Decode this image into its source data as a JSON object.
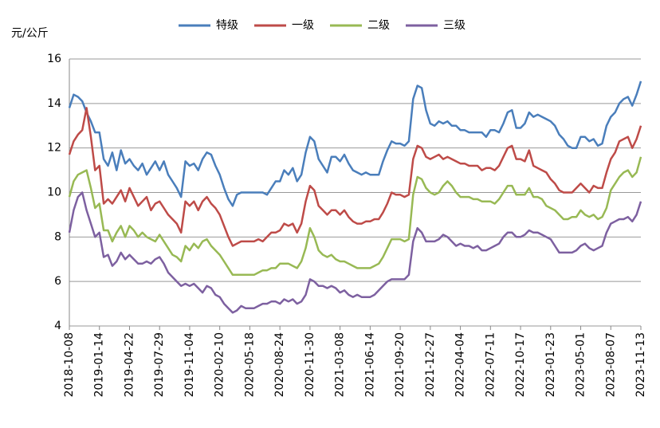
{
  "chart_data": {
    "type": "line",
    "y_label": "元/公斤",
    "categories": [
      "2018-10-08",
      null,
      null,
      null,
      null,
      null,
      null,
      "2019-01-14",
      null,
      null,
      null,
      null,
      null,
      null,
      "2019-04-22",
      null,
      null,
      null,
      null,
      null,
      null,
      "2019-07-29",
      null,
      null,
      null,
      null,
      null,
      null,
      "2019-11-04",
      null,
      null,
      null,
      null,
      null,
      null,
      "2020-02-10",
      null,
      null,
      null,
      null,
      null,
      null,
      "2020-05-18",
      null,
      null,
      null,
      null,
      null,
      null,
      "2020-08-24",
      null,
      null,
      null,
      null,
      null,
      null,
      "2020-11-30",
      null,
      null,
      null,
      null,
      null,
      null,
      "2021-03-08",
      null,
      null,
      null,
      null,
      null,
      null,
      "2021-06-14",
      null,
      null,
      null,
      null,
      null,
      null,
      "2021-09-20",
      null,
      null,
      null,
      null,
      null,
      null,
      "2021-12-27",
      null,
      null,
      null,
      null,
      null,
      null,
      "2022-04-04",
      null,
      null,
      null,
      null,
      null,
      null,
      "2022-07-11",
      null,
      null,
      null,
      null,
      null,
      null,
      "2022-10-17",
      null,
      null,
      null,
      null,
      null,
      null,
      "2023-01-23",
      null,
      null,
      null,
      null,
      null,
      null,
      "2023-05-01",
      null,
      null,
      null,
      null,
      null,
      null,
      "2023-08-07",
      null,
      null,
      null,
      null,
      null,
      null,
      "2023-11-13"
    ],
    "series": [
      {
        "name": "特级",
        "color": "#4a7ebb",
        "values": [
          13.8,
          14.4,
          14.3,
          14.1,
          13.6,
          13.2,
          12.7,
          12.7,
          11.5,
          11.2,
          11.8,
          11.0,
          11.9,
          11.3,
          11.5,
          11.2,
          11.0,
          11.3,
          10.8,
          11.1,
          11.4,
          11.0,
          11.4,
          10.8,
          10.5,
          10.2,
          9.8,
          11.4,
          11.2,
          11.3,
          11.0,
          11.5,
          11.8,
          11.7,
          11.2,
          10.8,
          10.2,
          9.7,
          9.4,
          9.9,
          10.0,
          10.0,
          10.0,
          10.0,
          10.0,
          10.0,
          9.9,
          10.2,
          10.5,
          10.5,
          11.0,
          10.8,
          11.1,
          10.5,
          10.8,
          11.8,
          12.5,
          12.3,
          11.5,
          11.2,
          10.9,
          11.6,
          11.6,
          11.4,
          11.7,
          11.3,
          11.0,
          10.9,
          10.8,
          10.9,
          10.8,
          10.8,
          10.8,
          11.4,
          11.9,
          12.3,
          12.2,
          12.2,
          12.1,
          12.3,
          14.2,
          14.8,
          14.7,
          13.7,
          13.1,
          13.0,
          13.2,
          13.1,
          13.2,
          13.0,
          13.0,
          12.8,
          12.8,
          12.7,
          12.7,
          12.7,
          12.7,
          12.5,
          12.8,
          12.8,
          12.7,
          13.1,
          13.6,
          13.7,
          12.9,
          12.9,
          13.1,
          13.6,
          13.4,
          13.5,
          13.4,
          13.3,
          13.2,
          13.0,
          12.6,
          12.4,
          12.1,
          12.0,
          12.0,
          12.5,
          12.5,
          12.3,
          12.4,
          12.1,
          12.2,
          13.0,
          13.4,
          13.6,
          14.0,
          14.2,
          14.3,
          13.9,
          14.4,
          15.0
        ]
      },
      {
        "name": "一级",
        "color": "#be4b48",
        "values": [
          11.7,
          12.3,
          12.6,
          12.8,
          13.8,
          12.5,
          11.0,
          11.2,
          9.5,
          9.7,
          9.5,
          9.8,
          10.1,
          9.6,
          10.2,
          9.8,
          9.4,
          9.6,
          9.8,
          9.2,
          9.5,
          9.6,
          9.3,
          9.0,
          8.8,
          8.6,
          8.2,
          9.6,
          9.4,
          9.6,
          9.2,
          9.6,
          9.8,
          9.5,
          9.3,
          9.0,
          8.5,
          8.0,
          7.6,
          7.7,
          7.8,
          7.8,
          7.8,
          7.8,
          7.9,
          7.8,
          8.0,
          8.2,
          8.2,
          8.3,
          8.6,
          8.5,
          8.6,
          8.2,
          8.6,
          9.6,
          10.3,
          10.1,
          9.4,
          9.2,
          9.0,
          9.2,
          9.2,
          9.0,
          9.2,
          8.9,
          8.7,
          8.6,
          8.6,
          8.7,
          8.7,
          8.8,
          8.8,
          9.1,
          9.5,
          10.0,
          9.9,
          9.9,
          9.8,
          9.9,
          11.5,
          12.1,
          12.0,
          11.6,
          11.5,
          11.6,
          11.7,
          11.5,
          11.6,
          11.5,
          11.4,
          11.3,
          11.3,
          11.2,
          11.2,
          11.2,
          11.0,
          11.1,
          11.1,
          11.0,
          11.2,
          11.6,
          12.0,
          12.1,
          11.5,
          11.5,
          11.4,
          11.9,
          11.2,
          11.1,
          11.0,
          10.9,
          10.6,
          10.4,
          10.1,
          10.0,
          10.0,
          10.0,
          10.2,
          10.4,
          10.2,
          10.0,
          10.3,
          10.2,
          10.2,
          10.9,
          11.5,
          11.8,
          12.3,
          12.4,
          12.5,
          12.0,
          12.4,
          13.0
        ]
      },
      {
        "name": "二级",
        "color": "#98b954",
        "values": [
          9.8,
          10.5,
          10.8,
          10.9,
          11.0,
          10.2,
          9.3,
          9.5,
          8.3,
          8.3,
          7.8,
          8.2,
          8.5,
          8.0,
          8.5,
          8.3,
          8.0,
          8.2,
          8.0,
          7.9,
          7.8,
          8.1,
          7.8,
          7.5,
          7.2,
          7.1,
          6.9,
          7.6,
          7.4,
          7.7,
          7.5,
          7.8,
          7.9,
          7.6,
          7.4,
          7.2,
          6.9,
          6.6,
          6.3,
          6.3,
          6.3,
          6.3,
          6.3,
          6.3,
          6.4,
          6.5,
          6.5,
          6.6,
          6.6,
          6.8,
          6.8,
          6.8,
          6.7,
          6.6,
          6.9,
          7.5,
          8.4,
          8.0,
          7.4,
          7.2,
          7.1,
          7.2,
          7.0,
          6.9,
          6.9,
          6.8,
          6.7,
          6.6,
          6.6,
          6.6,
          6.6,
          6.7,
          6.8,
          7.1,
          7.5,
          7.9,
          7.9,
          7.9,
          7.8,
          7.9,
          9.9,
          10.7,
          10.6,
          10.2,
          10.0,
          9.9,
          10.0,
          10.3,
          10.5,
          10.3,
          10.0,
          9.8,
          9.8,
          9.8,
          9.7,
          9.7,
          9.6,
          9.6,
          9.6,
          9.5,
          9.7,
          10.0,
          10.3,
          10.3,
          9.9,
          9.9,
          9.9,
          10.2,
          9.8,
          9.8,
          9.7,
          9.4,
          9.3,
          9.2,
          9.0,
          8.8,
          8.8,
          8.9,
          8.9,
          9.2,
          9.0,
          8.9,
          9.0,
          8.8,
          8.9,
          9.3,
          10.1,
          10.4,
          10.7,
          10.9,
          11.0,
          10.7,
          10.9,
          11.6
        ]
      },
      {
        "name": "三级",
        "color": "#7d60a0",
        "values": [
          8.2,
          9.2,
          9.8,
          10.0,
          9.2,
          8.6,
          8.0,
          8.2,
          7.1,
          7.2,
          6.7,
          6.9,
          7.3,
          7.0,
          7.2,
          7.0,
          6.8,
          6.8,
          6.9,
          6.8,
          7.0,
          7.1,
          6.8,
          6.4,
          6.2,
          6.0,
          5.8,
          5.9,
          5.8,
          5.9,
          5.7,
          5.5,
          5.8,
          5.7,
          5.4,
          5.3,
          5.0,
          4.8,
          4.6,
          4.7,
          4.9,
          4.8,
          4.8,
          4.8,
          4.9,
          5.0,
          5.0,
          5.1,
          5.1,
          5.0,
          5.2,
          5.1,
          5.2,
          5.0,
          5.1,
          5.4,
          6.1,
          6.0,
          5.8,
          5.8,
          5.7,
          5.8,
          5.7,
          5.5,
          5.6,
          5.4,
          5.3,
          5.4,
          5.3,
          5.3,
          5.3,
          5.4,
          5.6,
          5.8,
          6.0,
          6.1,
          6.1,
          6.1,
          6.1,
          6.3,
          7.8,
          8.4,
          8.2,
          7.8,
          7.8,
          7.8,
          7.9,
          8.1,
          8.0,
          7.8,
          7.6,
          7.7,
          7.6,
          7.6,
          7.5,
          7.6,
          7.4,
          7.4,
          7.5,
          7.6,
          7.7,
          8.0,
          8.2,
          8.2,
          8.0,
          8.0,
          8.1,
          8.3,
          8.2,
          8.2,
          8.1,
          8.0,
          7.9,
          7.6,
          7.3,
          7.3,
          7.3,
          7.3,
          7.4,
          7.6,
          7.7,
          7.5,
          7.4,
          7.5,
          7.6,
          8.2,
          8.6,
          8.7,
          8.8,
          8.8,
          8.9,
          8.7,
          9.0,
          9.6
        ]
      }
    ],
    "ylim": [
      4,
      16
    ],
    "yticks": [
      4,
      6,
      8,
      10,
      12,
      14,
      16
    ],
    "grid": true,
    "legend": "top"
  }
}
